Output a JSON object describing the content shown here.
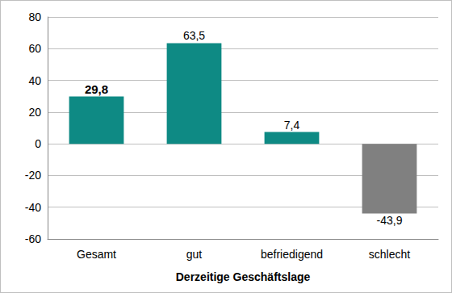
{
  "chart_data": {
    "type": "bar",
    "x_label": "Derzeitige Geschäftslage",
    "categories": [
      "Gesamt",
      "gut",
      "befriedigend",
      "schlecht"
    ],
    "values": [
      29.8,
      63.5,
      7.4,
      -43.9
    ],
    "value_labels": [
      "29,8",
      "63,5",
      "7,4",
      "-43,9"
    ],
    "colors": [
      "#0e8a84",
      "#0e8a84",
      "#0e8a84",
      "#808080"
    ],
    "ylim": [
      -60,
      80
    ],
    "yticks": [
      -60,
      -40,
      -20,
      0,
      20,
      40,
      60,
      80
    ],
    "grid": true,
    "data_labels": true
  }
}
